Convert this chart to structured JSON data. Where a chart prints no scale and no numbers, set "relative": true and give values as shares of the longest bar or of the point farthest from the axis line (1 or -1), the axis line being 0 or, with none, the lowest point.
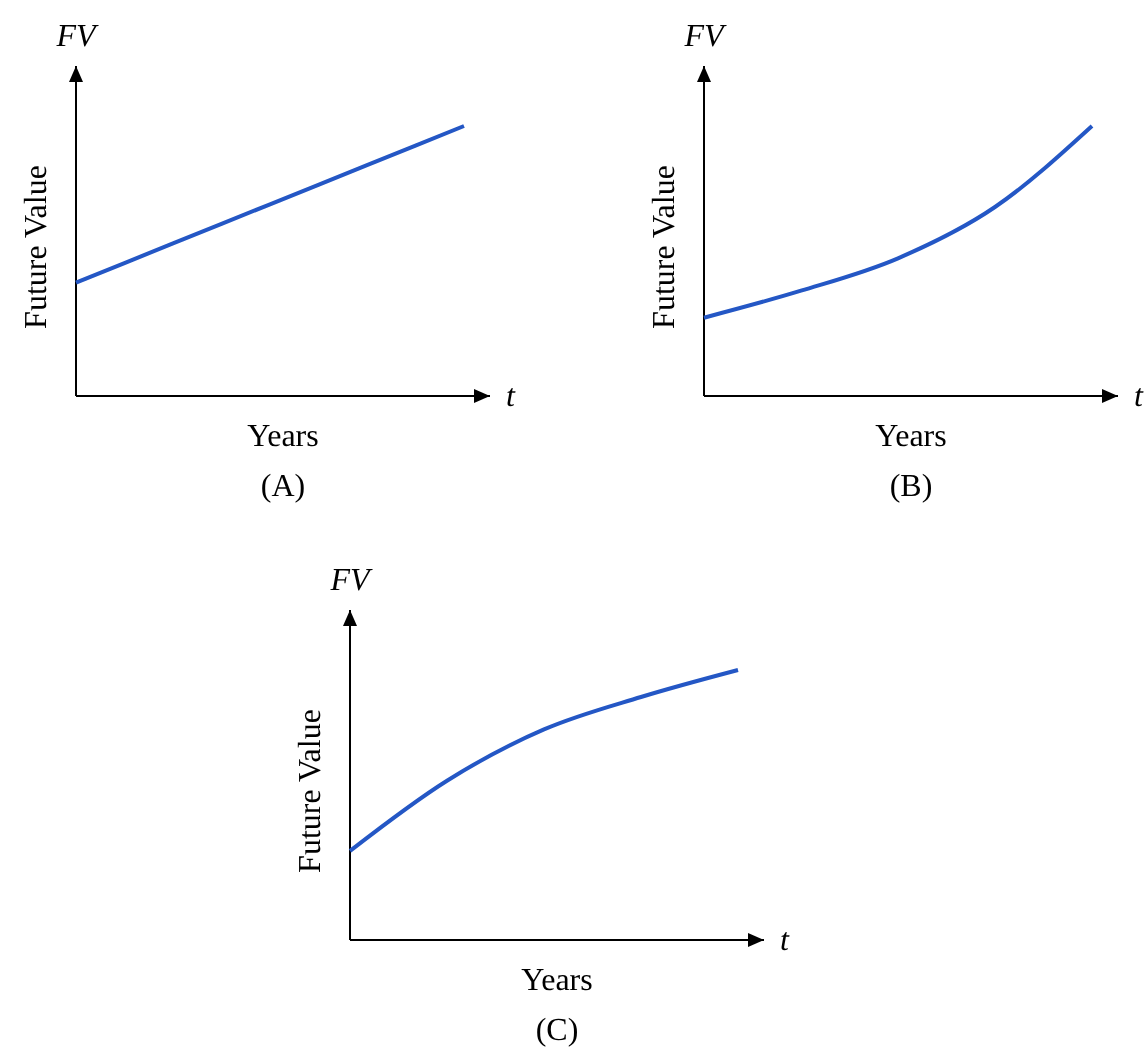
{
  "chart_data": [
    {
      "type": "line",
      "relative": true,
      "title": "(A)",
      "xlabel": "Years",
      "ylabel": "Future Value",
      "annotations": [
        "FV",
        "t"
      ],
      "categories": [
        null,
        null,
        null,
        null,
        null
      ],
      "series": [
        {
          "color": "#2457c5",
          "values": [
            0.42,
            0.565,
            0.71,
            0.855,
            1
          ]
        }
      ]
    },
    {
      "type": "line",
      "relative": true,
      "title": "(B)",
      "xlabel": "Years",
      "ylabel": "Future Value",
      "annotations": [
        "FV",
        "t"
      ],
      "categories": [
        null,
        null,
        null,
        null,
        null
      ],
      "series": [
        {
          "color": "#2457c5",
          "values": [
            0.29,
            0.39,
            0.51,
            0.7,
            1
          ]
        }
      ]
    },
    {
      "type": "line",
      "relative": true,
      "title": "(C)",
      "xlabel": "Years",
      "ylabel": "Future Value",
      "annotations": [
        "FV",
        "t"
      ],
      "categories": [
        null,
        null,
        null,
        null,
        null
      ],
      "series": [
        {
          "color": "#2457c5",
          "values": [
            0.33,
            0.59,
            0.78,
            0.9,
            1
          ]
        }
      ]
    }
  ]
}
